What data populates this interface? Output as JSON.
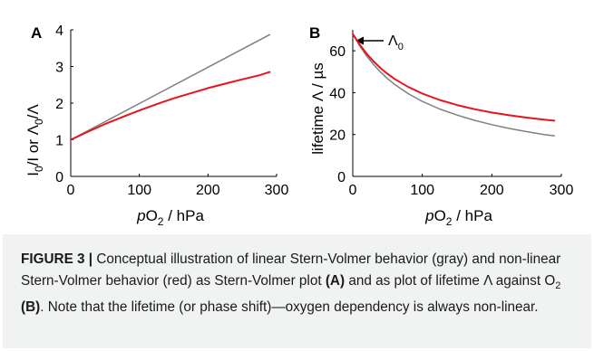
{
  "chart_data": [
    {
      "type": "line",
      "panel_label": "A",
      "xlabel_italic": "p",
      "xlabel_main": "O",
      "xlabel_sub": "2",
      "xlabel_rest": " / hPa",
      "ylabel_i": "I",
      "ylabel_0a": "0",
      "ylabel_mid": "/I  or  Λ",
      "ylabel_0b": "0",
      "ylabel_end": "/Λ",
      "xlim": [
        0,
        300
      ],
      "ylim": [
        0,
        4
      ],
      "xticks": [
        "0",
        "100",
        "200",
        "300"
      ],
      "yticks": [
        "0",
        "1",
        "2",
        "3",
        "4"
      ],
      "series": [
        {
          "color": "#808080",
          "x": [
            0,
            290
          ],
          "y": [
            1.0,
            3.87
          ]
        },
        {
          "color": "#e8141c",
          "x": [
            0,
            25,
            50,
            75,
            100,
            125,
            150,
            175,
            200,
            225,
            250,
            275,
            290
          ],
          "y": [
            1.0,
            1.22,
            1.43,
            1.62,
            1.8,
            1.97,
            2.13,
            2.27,
            2.41,
            2.53,
            2.65,
            2.76,
            2.85
          ]
        }
      ]
    },
    {
      "type": "line",
      "panel_label": "B",
      "xlabel_italic": "p",
      "xlabel_main": "O",
      "xlabel_sub": "2",
      "xlabel_rest": " / hPa",
      "ylabel": "lifetime Λ / µs",
      "annotation_main": "Λ",
      "annotation_sub": "0",
      "xlim": [
        0,
        300
      ],
      "ylim": [
        0,
        70
      ],
      "xticks": [
        "0",
        "100",
        "200",
        "300"
      ],
      "yticks": [
        "0",
        "20",
        "40",
        "60"
      ],
      "series": [
        {
          "color": "#808080",
          "x": [
            0,
            10,
            20,
            30,
            40,
            50,
            60,
            80,
            100,
            125,
            150,
            175,
            200,
            225,
            250,
            275,
            290
          ],
          "y": [
            68.0,
            62.3,
            57.5,
            53.4,
            49.8,
            46.7,
            44.0,
            39.5,
            35.8,
            32.2,
            29.3,
            26.8,
            24.7,
            22.9,
            21.4,
            20.0,
            19.4
          ]
        },
        {
          "color": "#e8141c",
          "x": [
            0,
            10,
            20,
            30,
            40,
            50,
            60,
            80,
            100,
            125,
            150,
            175,
            200,
            225,
            250,
            275,
            290
          ],
          "y": [
            68.0,
            62.9,
            58.6,
            54.9,
            51.7,
            49.0,
            46.6,
            42.7,
            39.6,
            36.5,
            34.1,
            32.1,
            30.5,
            29.2,
            28.1,
            27.1,
            26.6
          ]
        }
      ]
    }
  ],
  "caption": {
    "lead": "FIGURE 3 |",
    "text1": " Conceptual illustration of linear Stern-Volmer behavior (gray) and non-linear Stern-Volmer behavior (red) as Stern-Volmer plot ",
    "refA": "(A)",
    "text2": " and as plot of lifetime Λ against O",
    "sub2": "2",
    "text3": " ",
    "refB": "(B)",
    "text4": ". Note that the lifetime (or phase shift)—oxygen dependency is always non-linear."
  }
}
